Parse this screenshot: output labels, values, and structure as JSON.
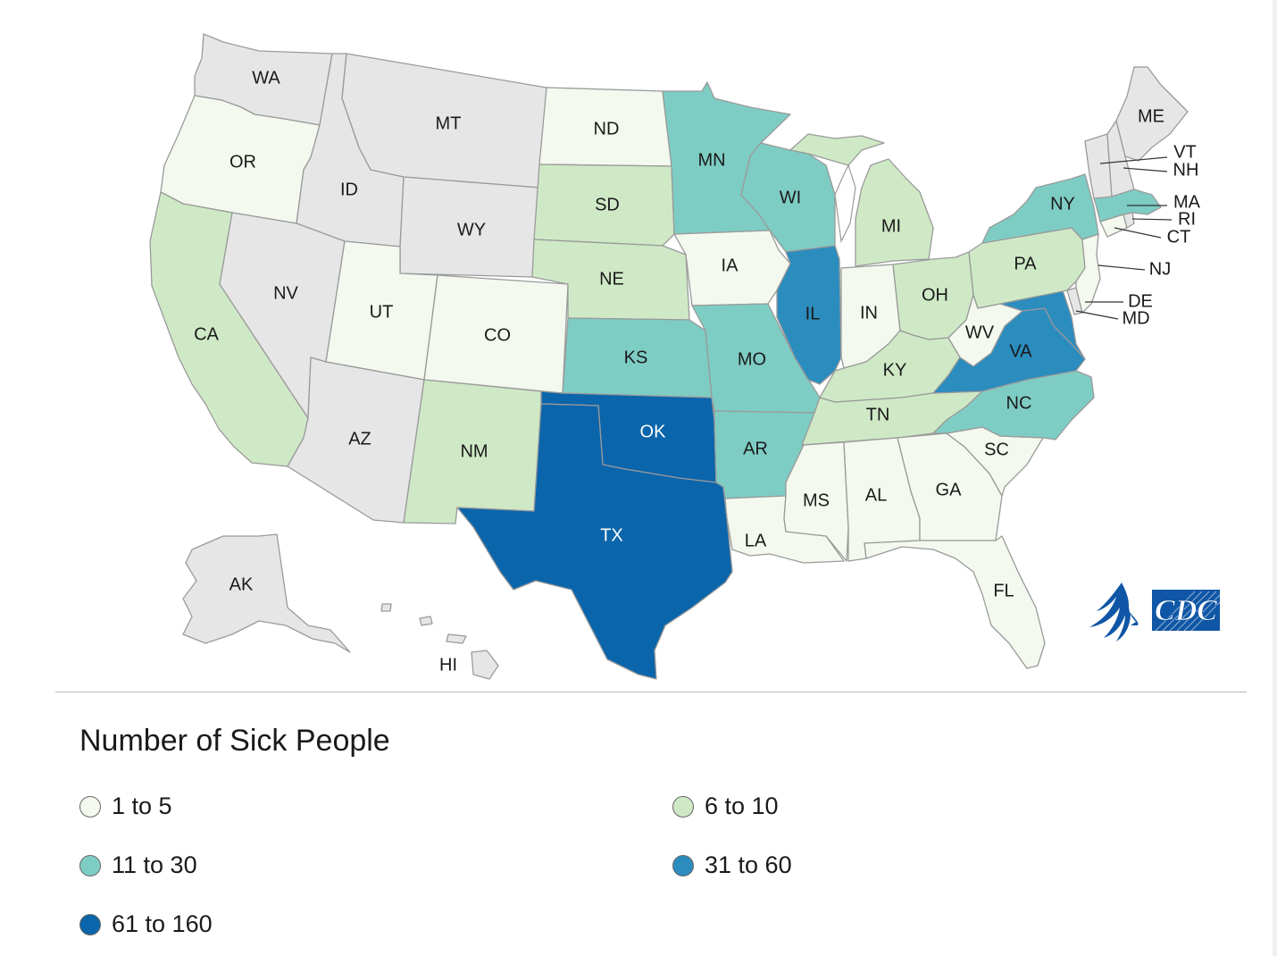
{
  "legend": {
    "title": "Number of Sick People",
    "bins": [
      {
        "label": "1 to 5",
        "color": "#f3f9ee"
      },
      {
        "label": "6 to 10",
        "color": "#cfe9c6"
      },
      {
        "label": "11 to 30",
        "color": "#7ecdc4"
      },
      {
        "label": "31 to 60",
        "color": "#2b8cbe"
      },
      {
        "label": "61 to 160",
        "color": "#0b65ab"
      }
    ]
  },
  "no_data_color": "#e6e6e6",
  "logo": {
    "text": "CDC",
    "icon": "hhs-eagle-icon",
    "color": "#0f56a6"
  },
  "states": {
    "WA": {
      "label": "WA",
      "bin": null
    },
    "OR": {
      "label": "OR",
      "bin": 0
    },
    "CA": {
      "label": "CA",
      "bin": 1
    },
    "ID": {
      "label": "ID",
      "bin": null
    },
    "NV": {
      "label": "NV",
      "bin": null
    },
    "MT": {
      "label": "MT",
      "bin": null
    },
    "WY": {
      "label": "WY",
      "bin": null
    },
    "UT": {
      "label": "UT",
      "bin": 0
    },
    "AZ": {
      "label": "AZ",
      "bin": null
    },
    "CO": {
      "label": "CO",
      "bin": 0
    },
    "NM": {
      "label": "NM",
      "bin": 1
    },
    "ND": {
      "label": "ND",
      "bin": 0
    },
    "SD": {
      "label": "SD",
      "bin": 1
    },
    "NE": {
      "label": "NE",
      "bin": 1
    },
    "KS": {
      "label": "KS",
      "bin": 2
    },
    "OK": {
      "label": "OK",
      "bin": 4
    },
    "TX": {
      "label": "TX",
      "bin": 4
    },
    "MN": {
      "label": "MN",
      "bin": 2
    },
    "IA": {
      "label": "IA",
      "bin": 0
    },
    "MO": {
      "label": "MO",
      "bin": 2
    },
    "AR": {
      "label": "AR",
      "bin": 2
    },
    "LA": {
      "label": "LA",
      "bin": 0
    },
    "WI": {
      "label": "WI",
      "bin": 2
    },
    "IL": {
      "label": "IL",
      "bin": 3
    },
    "MI": {
      "label": "MI",
      "bin": 1
    },
    "IN": {
      "label": "IN",
      "bin": 0
    },
    "OH": {
      "label": "OH",
      "bin": 1
    },
    "KY": {
      "label": "KY",
      "bin": 1
    },
    "TN": {
      "label": "TN",
      "bin": 1
    },
    "MS": {
      "label": "MS",
      "bin": 0
    },
    "AL": {
      "label": "AL",
      "bin": 0
    },
    "GA": {
      "label": "GA",
      "bin": 0
    },
    "FL": {
      "label": "FL",
      "bin": 0
    },
    "SC": {
      "label": "SC",
      "bin": 0
    },
    "NC": {
      "label": "NC",
      "bin": 2
    },
    "VA": {
      "label": "VA",
      "bin": 3
    },
    "WV": {
      "label": "WV",
      "bin": 0
    },
    "MD": {
      "label": "MD",
      "bin": 3
    },
    "DE": {
      "label": "DE",
      "bin": null
    },
    "PA": {
      "label": "PA",
      "bin": 1
    },
    "NJ": {
      "label": "NJ",
      "bin": 0
    },
    "NY": {
      "label": "NY",
      "bin": 2
    },
    "CT": {
      "label": "CT",
      "bin": 0
    },
    "RI": {
      "label": "RI",
      "bin": null
    },
    "MA": {
      "label": "MA",
      "bin": 2
    },
    "VT": {
      "label": "VT",
      "bin": null
    },
    "NH": {
      "label": "NH",
      "bin": null
    },
    "ME": {
      "label": "ME",
      "bin": null
    },
    "AK": {
      "label": "AK",
      "bin": null
    },
    "HI": {
      "label": "HI",
      "bin": null
    }
  }
}
